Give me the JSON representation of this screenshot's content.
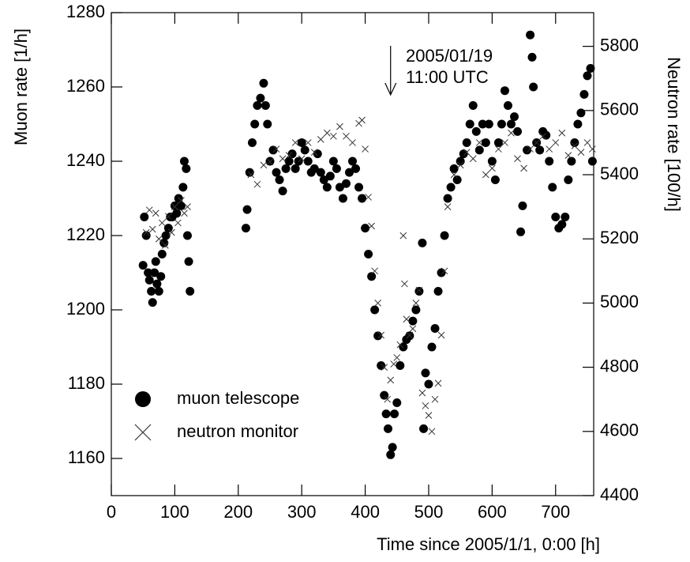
{
  "chart_data": {
    "type": "scatter",
    "x_label": "Time since 2005/1/1, 0:00 [h]",
    "y_label": "Muon rate [1/h]",
    "y2_label": "Neutron rate [100/h]",
    "annotation": [
      "2005/01/19",
      "11:00 UTC"
    ],
    "annotation_x": 440,
    "xlim": [
      0,
      760
    ],
    "xticks": [
      0,
      100,
      200,
      300,
      400,
      500,
      600,
      700
    ],
    "ylim": [
      1150,
      1280
    ],
    "yticks": [
      1160,
      1180,
      1200,
      1220,
      1240,
      1260,
      1280
    ],
    "y2lim": [
      4400,
      5905
    ],
    "y2ticks": [
      4400,
      4600,
      4800,
      5000,
      5200,
      5400,
      5600,
      5800
    ],
    "legend": "lower left",
    "series": [
      {
        "name": "muon telescope",
        "color": "#000000",
        "marker": "circle",
        "x": [
          50,
          52,
          55,
          58,
          60,
          63,
          65,
          68,
          70,
          72,
          75,
          78,
          80,
          83,
          86,
          90,
          93,
          96,
          100,
          103,
          106,
          110,
          113,
          115,
          118,
          120,
          122,
          124,
          212,
          214,
          218,
          222,
          226,
          230,
          235,
          240,
          243,
          246,
          250,
          255,
          260,
          265,
          270,
          275,
          280,
          285,
          290,
          295,
          300,
          305,
          310,
          315,
          320,
          325,
          330,
          335,
          340,
          345,
          350,
          355,
          360,
          365,
          370,
          375,
          380,
          385,
          390,
          395,
          400,
          405,
          410,
          415,
          420,
          425,
          430,
          433,
          436,
          440,
          443,
          446,
          450,
          455,
          460,
          465,
          470,
          475,
          480,
          485,
          490,
          492,
          495,
          500,
          505,
          510,
          515,
          520,
          525,
          530,
          535,
          540,
          545,
          550,
          555,
          560,
          565,
          570,
          575,
          580,
          585,
          590,
          595,
          600,
          605,
          610,
          615,
          620,
          625,
          630,
          635,
          640,
          645,
          648,
          655,
          660,
          663,
          665,
          670,
          675,
          680,
          685,
          690,
          695,
          700,
          705,
          710,
          715,
          720,
          725,
          730,
          735,
          740,
          745,
          750,
          755,
          758
        ],
        "values": [
          1212,
          1225,
          1220,
          1210,
          1208,
          1205,
          1202,
          1210,
          1213,
          1207,
          1205,
          1209,
          1215,
          1218,
          1220,
          1222,
          1225,
          1225,
          1228,
          1226,
          1230,
          1228,
          1233,
          1240,
          1238,
          1220,
          1213,
          1205,
          1222,
          1227,
          1237,
          1245,
          1250,
          1255,
          1257,
          1261,
          1255,
          1250,
          1240,
          1243,
          1237,
          1235,
          1232,
          1238,
          1240,
          1242,
          1238,
          1240,
          1245,
          1243,
          1240,
          1237,
          1238,
          1242,
          1237,
          1235,
          1233,
          1236,
          1240,
          1238,
          1233,
          1230,
          1234,
          1237,
          1240,
          1238,
          1233,
          1230,
          1222,
          1215,
          1209,
          1200,
          1193,
          1185,
          1177,
          1172,
          1168,
          1161,
          1163,
          1172,
          1175,
          1185,
          1190,
          1192,
          1193,
          1197,
          1200,
          1205,
          1218,
          1168,
          1183,
          1180,
          1190,
          1195,
          1205,
          1210,
          1220,
          1230,
          1233,
          1238,
          1235,
          1240,
          1242,
          1245,
          1250,
          1255,
          1248,
          1243,
          1250,
          1245,
          1250,
          1240,
          1235,
          1245,
          1250,
          1259,
          1255,
          1250,
          1252,
          1248,
          1221,
          1228,
          1243,
          1274,
          1268,
          1260,
          1245,
          1243,
          1248,
          1247,
          1240,
          1233,
          1225,
          1222,
          1223,
          1225,
          1235,
          1240,
          1245,
          1250,
          1253,
          1258,
          1263,
          1265,
          1240
        ]
      },
      {
        "name": "neutron monitor",
        "color": "#333333",
        "marker": "cross",
        "axis": "y2",
        "x": [
          55,
          60,
          65,
          70,
          75,
          80,
          85,
          90,
          95,
          100,
          105,
          110,
          115,
          120,
          220,
          230,
          240,
          250,
          260,
          270,
          280,
          290,
          300,
          310,
          320,
          330,
          340,
          350,
          360,
          370,
          380,
          390,
          395,
          400,
          405,
          410,
          415,
          420,
          425,
          430,
          435,
          440,
          445,
          450,
          455,
          460,
          462,
          465,
          470,
          475,
          480,
          485,
          490,
          495,
          500,
          505,
          510,
          515,
          520,
          525,
          530,
          540,
          550,
          560,
          570,
          580,
          590,
          600,
          610,
          620,
          630,
          640,
          650,
          660,
          670,
          680,
          690,
          700,
          710,
          720,
          730,
          740,
          750,
          758
        ],
        "values": [
          5220,
          5290,
          5230,
          5280,
          5200,
          5250,
          5180,
          5270,
          5220,
          5300,
          5250,
          5320,
          5280,
          5300,
          5400,
          5370,
          5430,
          5440,
          5480,
          5450,
          5460,
          5500,
          5450,
          5500,
          5470,
          5510,
          5530,
          5520,
          5550,
          5520,
          5500,
          5560,
          5570,
          5480,
          5330,
          5240,
          5100,
          5000,
          4900,
          4800,
          4700,
          4760,
          4810,
          4830,
          4870,
          5210,
          5060,
          4950,
          4900,
          4920,
          5000,
          5040,
          4720,
          4680,
          4650,
          4600,
          4700,
          4750,
          4900,
          5100,
          5300,
          5400,
          5430,
          5470,
          5450,
          5500,
          5400,
          5420,
          5480,
          5500,
          5530,
          5450,
          5420,
          5480,
          5500,
          5520,
          5480,
          5500,
          5530,
          5460,
          5490,
          5470,
          5500,
          5480
        ]
      }
    ]
  }
}
